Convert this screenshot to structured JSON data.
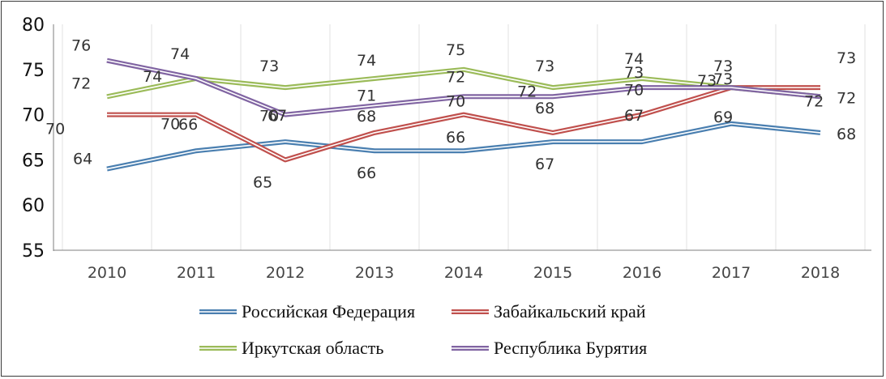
{
  "chart_data": {
    "type": "line",
    "title": "",
    "xlabel": "",
    "ylabel": "",
    "x": [
      "2010",
      "2011",
      "2012",
      "2013",
      "2014",
      "2015",
      "2016",
      "2017",
      "2018"
    ],
    "ylim": [
      55,
      80
    ],
    "yticks": [
      "55",
      "60",
      "65",
      "70",
      "75",
      "80"
    ],
    "grid": "vertical",
    "legend": "bottom",
    "series": [
      {
        "name": "Российская Федерация",
        "color": "#4a7fb0",
        "values": [
          64,
          66,
          67,
          66,
          66,
          67,
          67,
          69,
          68
        ]
      },
      {
        "name": "Забайкальский край",
        "color": "#c0504d",
        "values": [
          70,
          70,
          65,
          68,
          70,
          68,
          70,
          73,
          73
        ]
      },
      {
        "name": "Иркутская область",
        "color": "#9bbb59",
        "values": [
          72,
          74,
          73,
          74,
          75,
          73,
          74,
          73,
          72
        ]
      },
      {
        "name": "Республика Бурятия",
        "color": "#8064a2",
        "values": [
          76,
          74,
          70,
          71,
          72,
          72,
          73,
          73,
          72
        ]
      }
    ]
  }
}
